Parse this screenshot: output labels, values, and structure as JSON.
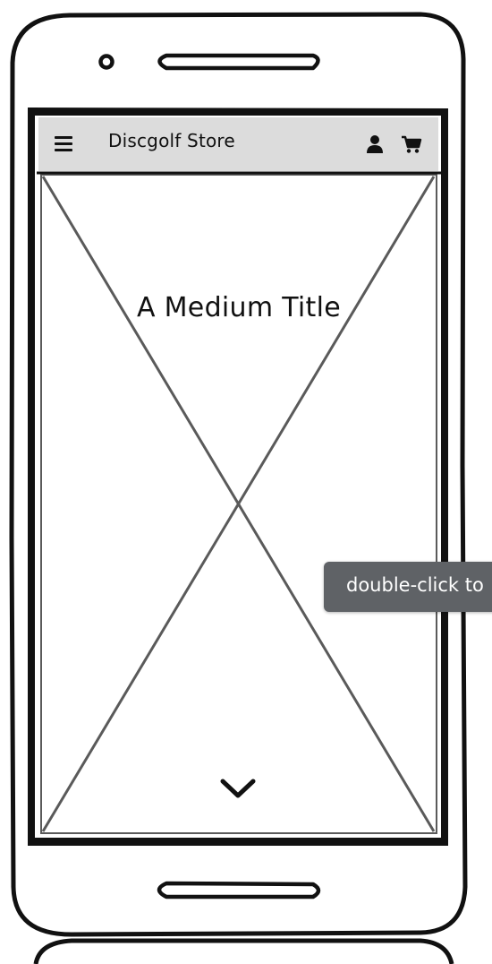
{
  "header": {
    "title": "Discgolf Store",
    "menu_icon": "hamburger-menu-icon",
    "user_icon": "user-icon",
    "cart_icon": "shopping-cart-icon"
  },
  "hero": {
    "title": "A Medium Title",
    "image_placeholder": "image-placeholder",
    "scroll_icon": "chevron-down-icon"
  },
  "tooltip": {
    "text": "double-click to"
  },
  "colors": {
    "header_bg": "#dcdcdc",
    "tooltip_bg": "#5f6266",
    "outline": "#111111",
    "placeholder_line": "#5a5a5a"
  }
}
